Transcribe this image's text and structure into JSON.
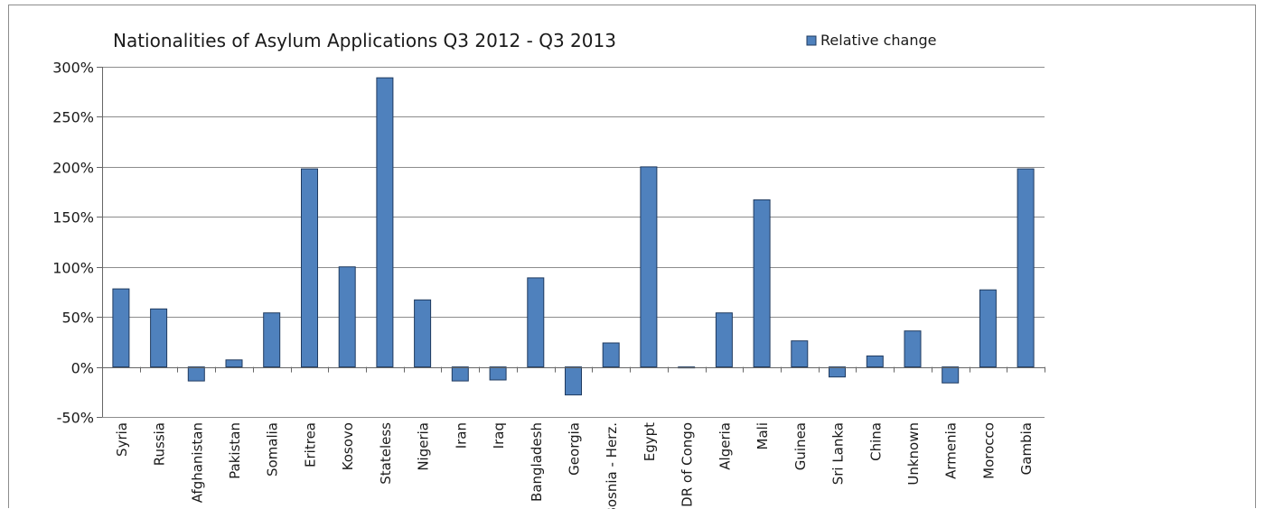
{
  "chart_data": {
    "type": "bar",
    "title": "Nationalities of Asylum Applications  Q3 2012 - Q3 2013",
    "xlabel": "",
    "ylabel": "",
    "ylim": [
      -50,
      300
    ],
    "yticks": [
      -50,
      0,
      50,
      100,
      150,
      200,
      250,
      300
    ],
    "ytick_labels": [
      "-50%",
      "0%",
      "50%",
      "100%",
      "150%",
      "200%",
      "250%",
      "300%"
    ],
    "grid": true,
    "legend_position": "top-right",
    "bar_color": "#4f81bd",
    "bar_edge_color": "#1f3a5f",
    "categories": [
      "Syria",
      "Russia",
      "Afghanistan",
      "Pakistan",
      "Somalia",
      "Eritrea",
      "Kosovo",
      "Stateless",
      "Nigeria",
      "Iran",
      "Iraq",
      "Bangladesh",
      "Georgia",
      "Bosnia - Herz.",
      "Egypt",
      "DR of Congo",
      "Algeria",
      "Mali",
      "Guinea",
      "Sri Lanka",
      "China",
      "Unknown",
      "Armenia",
      "Morocco",
      "Gambia"
    ],
    "series": [
      {
        "name": "Relative change",
        "values": [
          78,
          58,
          -14,
          7,
          54,
          198,
          100,
          289,
          67,
          -14,
          -13,
          89,
          -28,
          24,
          200,
          -1,
          54,
          167,
          26,
          -10,
          11,
          36,
          -16,
          77,
          198
        ]
      }
    ]
  }
}
